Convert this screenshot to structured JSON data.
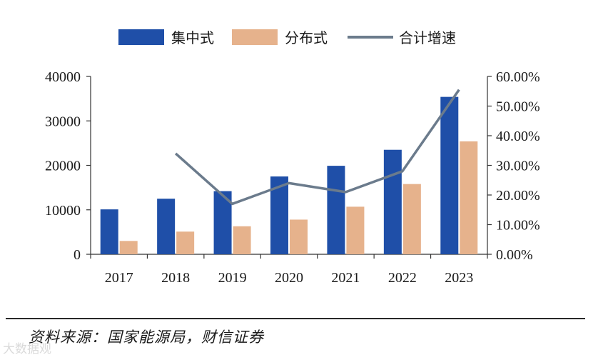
{
  "chart_data": {
    "type": "bar",
    "categories": [
      "2017",
      "2018",
      "2019",
      "2020",
      "2021",
      "2022",
      "2023"
    ],
    "series": [
      {
        "name": "集中式",
        "type": "bar",
        "axis": "left",
        "color": "#1f4fa8",
        "values": [
          10100,
          12500,
          14200,
          17500,
          19900,
          23500,
          35400
        ]
      },
      {
        "name": "分布式",
        "type": "bar",
        "axis": "left",
        "color": "#e6b28c",
        "values": [
          3000,
          5100,
          6300,
          7800,
          10700,
          15800,
          25400
        ]
      },
      {
        "name": "合计增速",
        "type": "line",
        "axis": "right",
        "color": "#6b7b8c",
        "values": [
          null,
          34.0,
          17.0,
          24.0,
          21.0,
          28.0,
          55.5
        ]
      }
    ],
    "y_left": {
      "min": 0,
      "max": 40000,
      "ticks": [
        "0",
        "10000",
        "20000",
        "30000",
        "40000"
      ]
    },
    "y_right": {
      "min": 0,
      "max": 60,
      "unit": "%",
      "ticks": [
        "0.00%",
        "10.00%",
        "20.00%",
        "30.00%",
        "40.00%",
        "50.00%",
        "60.00%"
      ]
    },
    "legend": "top-center",
    "grid": false
  },
  "source": "资料来源：国家能源局，财信证券",
  "watermark": "大数据观"
}
